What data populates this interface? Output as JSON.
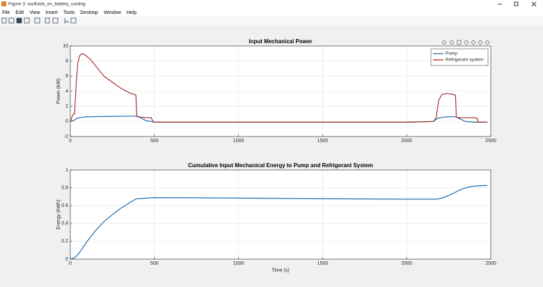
{
  "window": {
    "title": "Figure 3: sscfluids_ev_battery_cooling",
    "menu": [
      "File",
      "Edit",
      "View",
      "Insert",
      "Tools",
      "Desktop",
      "Window",
      "Help"
    ]
  },
  "chart_data": [
    {
      "type": "line",
      "title": "Input Mechanical Power",
      "ylabel": "Power (kW)",
      "x": [
        0,
        15,
        25,
        35,
        45,
        55,
        70,
        90,
        120,
        160,
        200,
        250,
        300,
        350,
        390,
        395,
        400,
        450,
        480,
        490,
        500,
        1000,
        1500,
        2000,
        2160,
        2175,
        2190,
        2210,
        2240,
        2270,
        2290,
        2295,
        2300,
        2350,
        2400,
        2420,
        2425,
        2480
      ],
      "series": [
        {
          "name": "Pump",
          "color": "#0a5fa8",
          "values": [
            0,
            0.1,
            0.2,
            0.35,
            0.45,
            0.5,
            0.55,
            0.6,
            0.62,
            0.65,
            0.65,
            0.67,
            0.68,
            0.7,
            0.7,
            0.7,
            0.7,
            0.1,
            0.0,
            -0.05,
            -0.1,
            -0.1,
            -0.1,
            -0.1,
            0.0,
            0.3,
            0.45,
            0.55,
            0.6,
            0.62,
            0.62,
            0.6,
            0.5,
            0.0,
            -0.1,
            -0.1,
            -0.1,
            -0.1
          ]
        },
        {
          "name": "Refrigerant system",
          "color": "#a3201c",
          "values": [
            0,
            0.9,
            1.0,
            5.0,
            7.8,
            8.7,
            9.0,
            8.8,
            8.2,
            7.1,
            6.0,
            5.2,
            4.4,
            3.8,
            3.5,
            0.7,
            0.6,
            0.5,
            0.5,
            0.1,
            -0.1,
            -0.1,
            -0.1,
            -0.1,
            0.0,
            0.5,
            2.8,
            3.6,
            3.7,
            3.6,
            3.5,
            0.6,
            0.5,
            0.5,
            0.5,
            0.4,
            -0.1,
            -0.1
          ]
        }
      ],
      "xlim": [
        0,
        2500
      ],
      "xticks": [
        0,
        500,
        1000,
        1500,
        2000,
        2500
      ],
      "ylim": [
        -2,
        10
      ],
      "yticks": [
        -2,
        0,
        2,
        4,
        6,
        8,
        10
      ],
      "grid": true,
      "legend": "northeast"
    },
    {
      "type": "line",
      "title": "Cumulative Input Mechanical Energy to Pump and Refrigerant System",
      "xlabel": "Time (s)",
      "ylabel": "Energy (kWh)",
      "color": "#0a5fa8",
      "x": [
        0,
        20,
        40,
        60,
        100,
        150,
        200,
        250,
        300,
        350,
        390,
        420,
        500,
        1000,
        1500,
        2000,
        2180,
        2220,
        2280,
        2320,
        2380,
        2450,
        2480
      ],
      "values": [
        0,
        0.01,
        0.04,
        0.09,
        0.2,
        0.32,
        0.42,
        0.5,
        0.57,
        0.63,
        0.675,
        0.68,
        0.69,
        0.685,
        0.677,
        0.672,
        0.672,
        0.69,
        0.74,
        0.78,
        0.815,
        0.825,
        0.825
      ],
      "xlim": [
        0,
        2500
      ],
      "xticks": [
        0,
        500,
        1000,
        1500,
        2000,
        2500
      ],
      "ylim": [
        0,
        1
      ],
      "yticks": [
        0,
        0.2,
        0.4,
        0.6,
        0.8,
        1
      ],
      "grid": true
    }
  ]
}
